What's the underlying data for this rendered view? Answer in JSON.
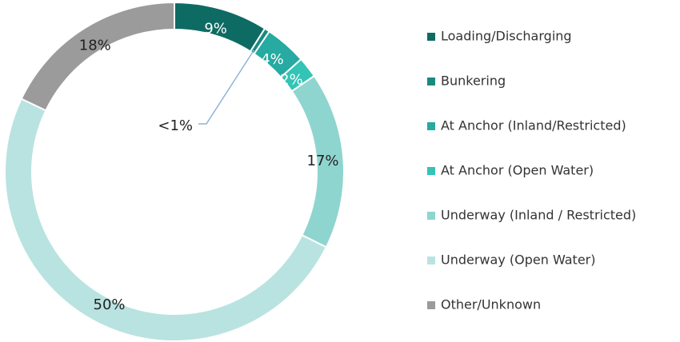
{
  "chart_data": {
    "type": "donut",
    "categories": [
      "Loading/Discharging",
      "Bunkering",
      "At Anchor (Inland/Restricted)",
      "At Anchor (Open Water)",
      "Underway (Inland / Restricted)",
      "Underway (Open Water)",
      "Other/Unknown"
    ],
    "values": [
      9,
      0.5,
      4,
      2,
      17,
      50,
      18
    ],
    "value_labels": [
      "9%",
      "<1%",
      "4%",
      "2%",
      "17%",
      "50%",
      "18%"
    ],
    "colors": [
      "#0e6b63",
      "#1a8a80",
      "#26aaa2",
      "#33c4b6",
      "#8fd5cf",
      "#b9e3e0",
      "#9b9b9b"
    ],
    "legend": "right"
  }
}
